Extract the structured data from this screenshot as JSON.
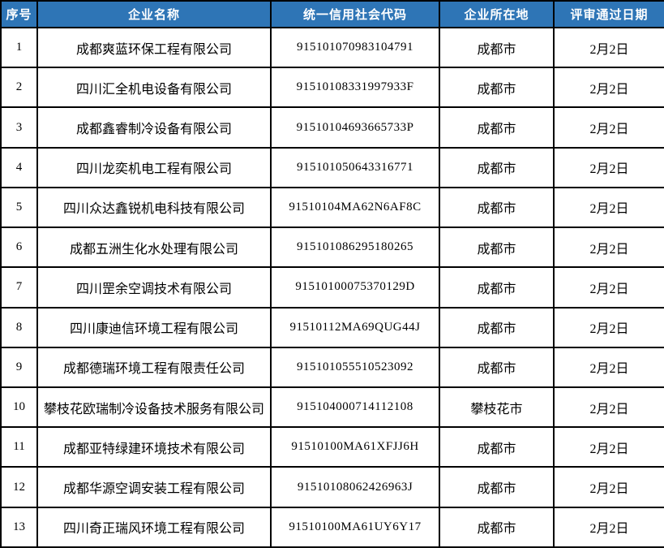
{
  "colors": {
    "header_bg": "#2E75B6",
    "header_text": "#FFFFFF",
    "border": "#000000",
    "row_bg": "#FFFFFF",
    "body_text": "#000000"
  },
  "table": {
    "headers": {
      "no": "序号",
      "name": "企业名称",
      "code": "统一信用社会代码",
      "city": "企业所在地",
      "date": "评审通过日期"
    },
    "rows": [
      {
        "no": "1",
        "name": "成都爽蓝环保工程有限公司",
        "code": "915101070983104791",
        "city": "成都市",
        "date": "2月2日"
      },
      {
        "no": "2",
        "name": "四川汇全机电设备有限公司",
        "code": "91510108331997933F",
        "city": "成都市",
        "date": "2月2日"
      },
      {
        "no": "3",
        "name": "成都鑫睿制冷设备有限公司",
        "code": "91510104693665733P",
        "city": "成都市",
        "date": "2月2日"
      },
      {
        "no": "4",
        "name": "四川龙奕机电工程有限公司",
        "code": "915101050643316771",
        "city": "成都市",
        "date": "2月2日"
      },
      {
        "no": "5",
        "name": "四川众达鑫锐机电科技有限公司",
        "code": "91510104MA62N6AF8C",
        "city": "成都市",
        "date": "2月2日"
      },
      {
        "no": "6",
        "name": "成都五洲生化水处理有限公司",
        "code": "915101086295180265",
        "city": "成都市",
        "date": "2月2日"
      },
      {
        "no": "7",
        "name": "四川罡余空调技术有限公司",
        "code": "91510100075370129D",
        "city": "成都市",
        "date": "2月2日"
      },
      {
        "no": "8",
        "name": "四川康迪信环境工程有限公司",
        "code": "91510112MA69QUG44J",
        "city": "成都市",
        "date": "2月2日"
      },
      {
        "no": "9",
        "name": "成都德瑞环境工程有限责任公司",
        "code": "915101055510523092",
        "city": "成都市",
        "date": "2月2日"
      },
      {
        "no": "10",
        "name": "攀枝花欧瑞制冷设备技术服务有限公司",
        "code": "915104000714112108",
        "city": "攀枝花市",
        "date": "2月2日"
      },
      {
        "no": "11",
        "name": "成都亚特绿建环境技术有限公司",
        "code": "91510100MA61XFJJ6H",
        "city": "成都市",
        "date": "2月2日"
      },
      {
        "no": "12",
        "name": "成都华源空调安装工程有限公司",
        "code": "91510108062426963J",
        "city": "成都市",
        "date": "2月2日"
      },
      {
        "no": "13",
        "name": "四川奇正瑞风环境工程有限公司",
        "code": "91510100MA61UY6Y17",
        "city": "成都市",
        "date": "2月2日"
      }
    ]
  }
}
